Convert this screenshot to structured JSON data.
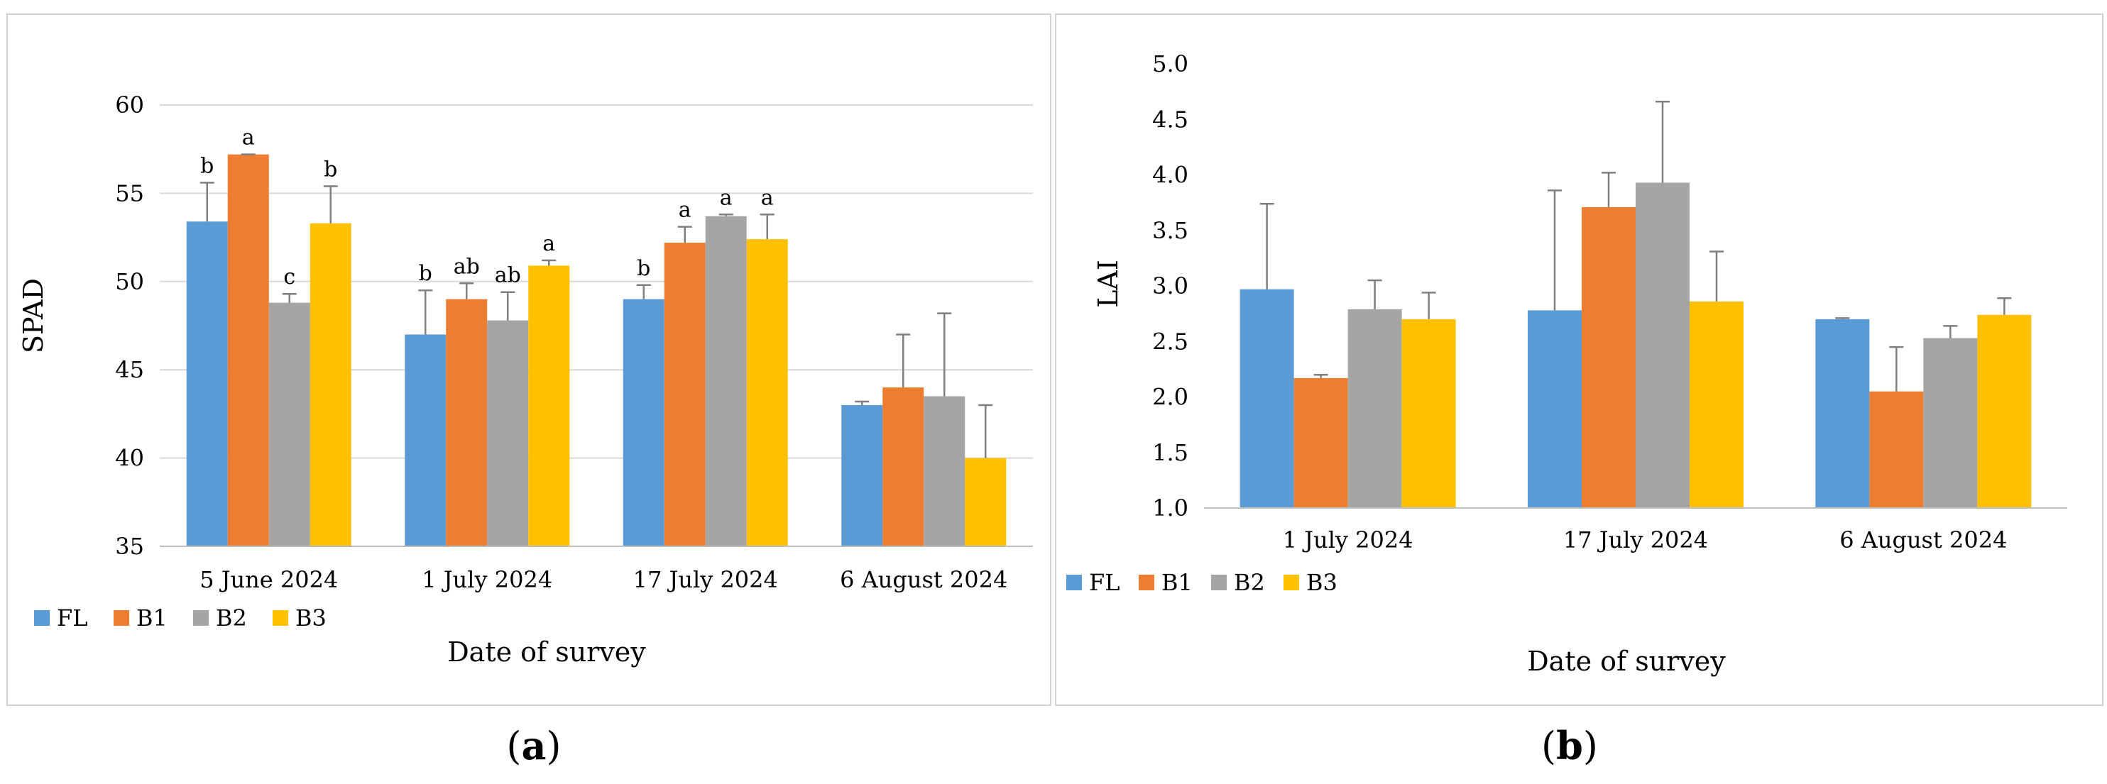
{
  "colors": {
    "FL": "#5b9bd5",
    "B1": "#ed7d31",
    "B2": "#a5a5a5",
    "B3": "#ffc000",
    "grid": "#d9d9d9",
    "frame": "#d0d0d0",
    "axis": "#bfbfbf",
    "error": "#7f7f7f"
  },
  "panel_labels": [
    {
      "open": "(",
      "letter": "a",
      "close": ")"
    },
    {
      "open": "(",
      "letter": "b",
      "close": ")"
    }
  ],
  "chart_data": [
    {
      "type": "bar",
      "title": "",
      "xlabel": "Date of survey",
      "ylabel": "SPAD",
      "ylim": [
        35,
        60
      ],
      "yticks": [
        "35",
        "40",
        "45",
        "50",
        "55",
        "60"
      ],
      "grid": true,
      "legend_position": "bottom-left",
      "categories": [
        "5 June 2024",
        "1 July 2024",
        "17 July 2024",
        "6 August 2024"
      ],
      "series": [
        {
          "name": "FL",
          "values": [
            53.4,
            47.0,
            49.0,
            43.0
          ],
          "errors": [
            2.2,
            2.5,
            0.8,
            0.2
          ],
          "labels": [
            "b",
            "b",
            "b",
            ""
          ]
        },
        {
          "name": "B1",
          "values": [
            57.2,
            49.0,
            52.2,
            44.0
          ],
          "errors": [
            0.0,
            0.9,
            0.9,
            3.0
          ],
          "labels": [
            "a",
            "ab",
            "a",
            ""
          ]
        },
        {
          "name": "B2",
          "values": [
            48.8,
            47.8,
            53.7,
            43.5
          ],
          "errors": [
            0.5,
            1.6,
            0.1,
            4.7
          ],
          "labels": [
            "c",
            "ab",
            "a",
            ""
          ]
        },
        {
          "name": "B3",
          "values": [
            53.3,
            50.9,
            52.4,
            40.0
          ],
          "errors": [
            2.1,
            0.3,
            1.4,
            3.0
          ],
          "labels": [
            "b",
            "a",
            "a",
            ""
          ]
        }
      ]
    },
    {
      "type": "bar",
      "title": "",
      "xlabel": "Date of survey",
      "ylabel": "LAI",
      "ylim": [
        1.0,
        5.0
      ],
      "yticks": [
        "1.0",
        "1.5",
        "2.0",
        "2.5",
        "3.0",
        "3.5",
        "4.0",
        "4.5",
        "5.0"
      ],
      "grid": false,
      "legend_position": "bottom-left",
      "categories": [
        "1 July 2024",
        "17 July 2024",
        "6 August 2024"
      ],
      "series": [
        {
          "name": "FL",
          "values": [
            2.97,
            2.78,
            2.7
          ],
          "errors": [
            0.77,
            1.08,
            0.01
          ]
        },
        {
          "name": "B1",
          "values": [
            2.17,
            3.71,
            2.05
          ],
          "errors": [
            0.03,
            0.31,
            0.4
          ]
        },
        {
          "name": "B2",
          "values": [
            2.79,
            3.93,
            2.53
          ],
          "errors": [
            0.26,
            0.73,
            0.11
          ]
        },
        {
          "name": "B3",
          "values": [
            2.7,
            2.86,
            2.74
          ],
          "errors": [
            0.24,
            0.45,
            0.15
          ]
        }
      ]
    }
  ]
}
